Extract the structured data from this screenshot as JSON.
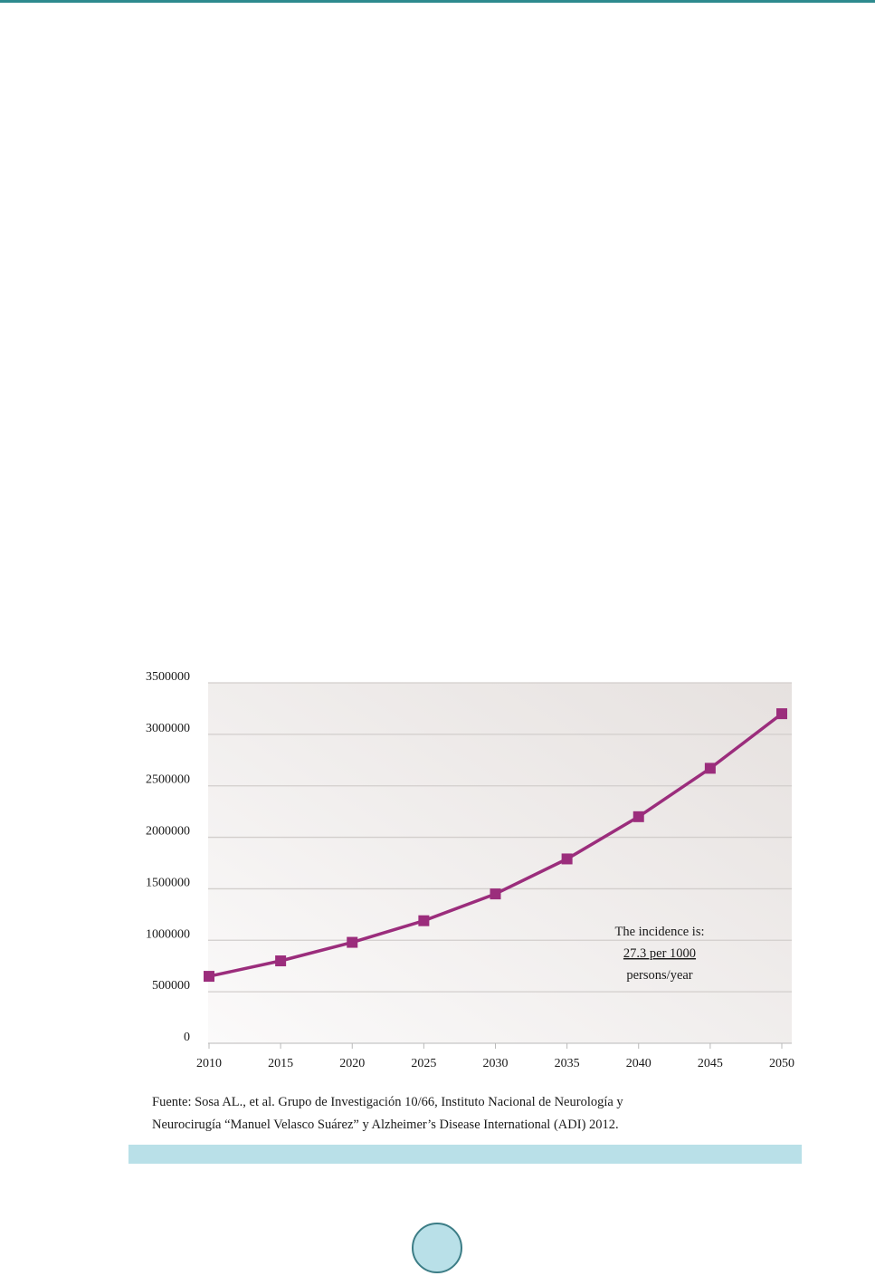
{
  "page": {
    "page_number": "",
    "colors": {
      "header_rule": "#2d8a8e",
      "band": "#b9e0e8",
      "badge_fill": "#b9e0e8",
      "badge_border": "#3c7d86",
      "series": "#9b2d7c"
    }
  },
  "chart_data": {
    "type": "line",
    "title": "",
    "xlabel": "",
    "ylabel": "",
    "x": [
      2010,
      2015,
      2020,
      2025,
      2030,
      2035,
      2040,
      2045,
      2050
    ],
    "series": [
      {
        "name": "",
        "values": [
          650000,
          800000,
          980000,
          1190000,
          1450000,
          1790000,
          2200000,
          2670000,
          3200000
        ],
        "color": "#9b2d7c",
        "marker": "square"
      }
    ],
    "y_ticks": [
      {
        "value": 0,
        "label": "0"
      },
      {
        "value": 500000,
        "label": "500000"
      },
      {
        "value": 1000000,
        "label": "1000000"
      },
      {
        "value": 1500000,
        "label": "1500000"
      },
      {
        "value": 2000000,
        "label": "2000000"
      },
      {
        "value": 2500000,
        "label": "2500000"
      },
      {
        "value": 3000000,
        "label": "3000000"
      },
      {
        "value": 3500000,
        "label": "3500000"
      }
    ],
    "x_ticks": [
      "2010",
      "2015",
      "2020",
      "2025",
      "2030",
      "2035",
      "2040",
      "2045",
      "2050"
    ],
    "ylim": [
      0,
      3500000
    ],
    "grid": true,
    "annotation": {
      "line1": "The incidence is:",
      "line2": "27.3 per 1000",
      "line3": "persons/year"
    },
    "source": {
      "line1": "Fuente: Sosa AL., et al. Grupo de Investigación 10/66, Instituto Nacional de Neurología y",
      "line2": "Neurocirugía “Manuel Velasco Suárez” y Alzheimer’s Disease International (ADI) 2012."
    }
  }
}
